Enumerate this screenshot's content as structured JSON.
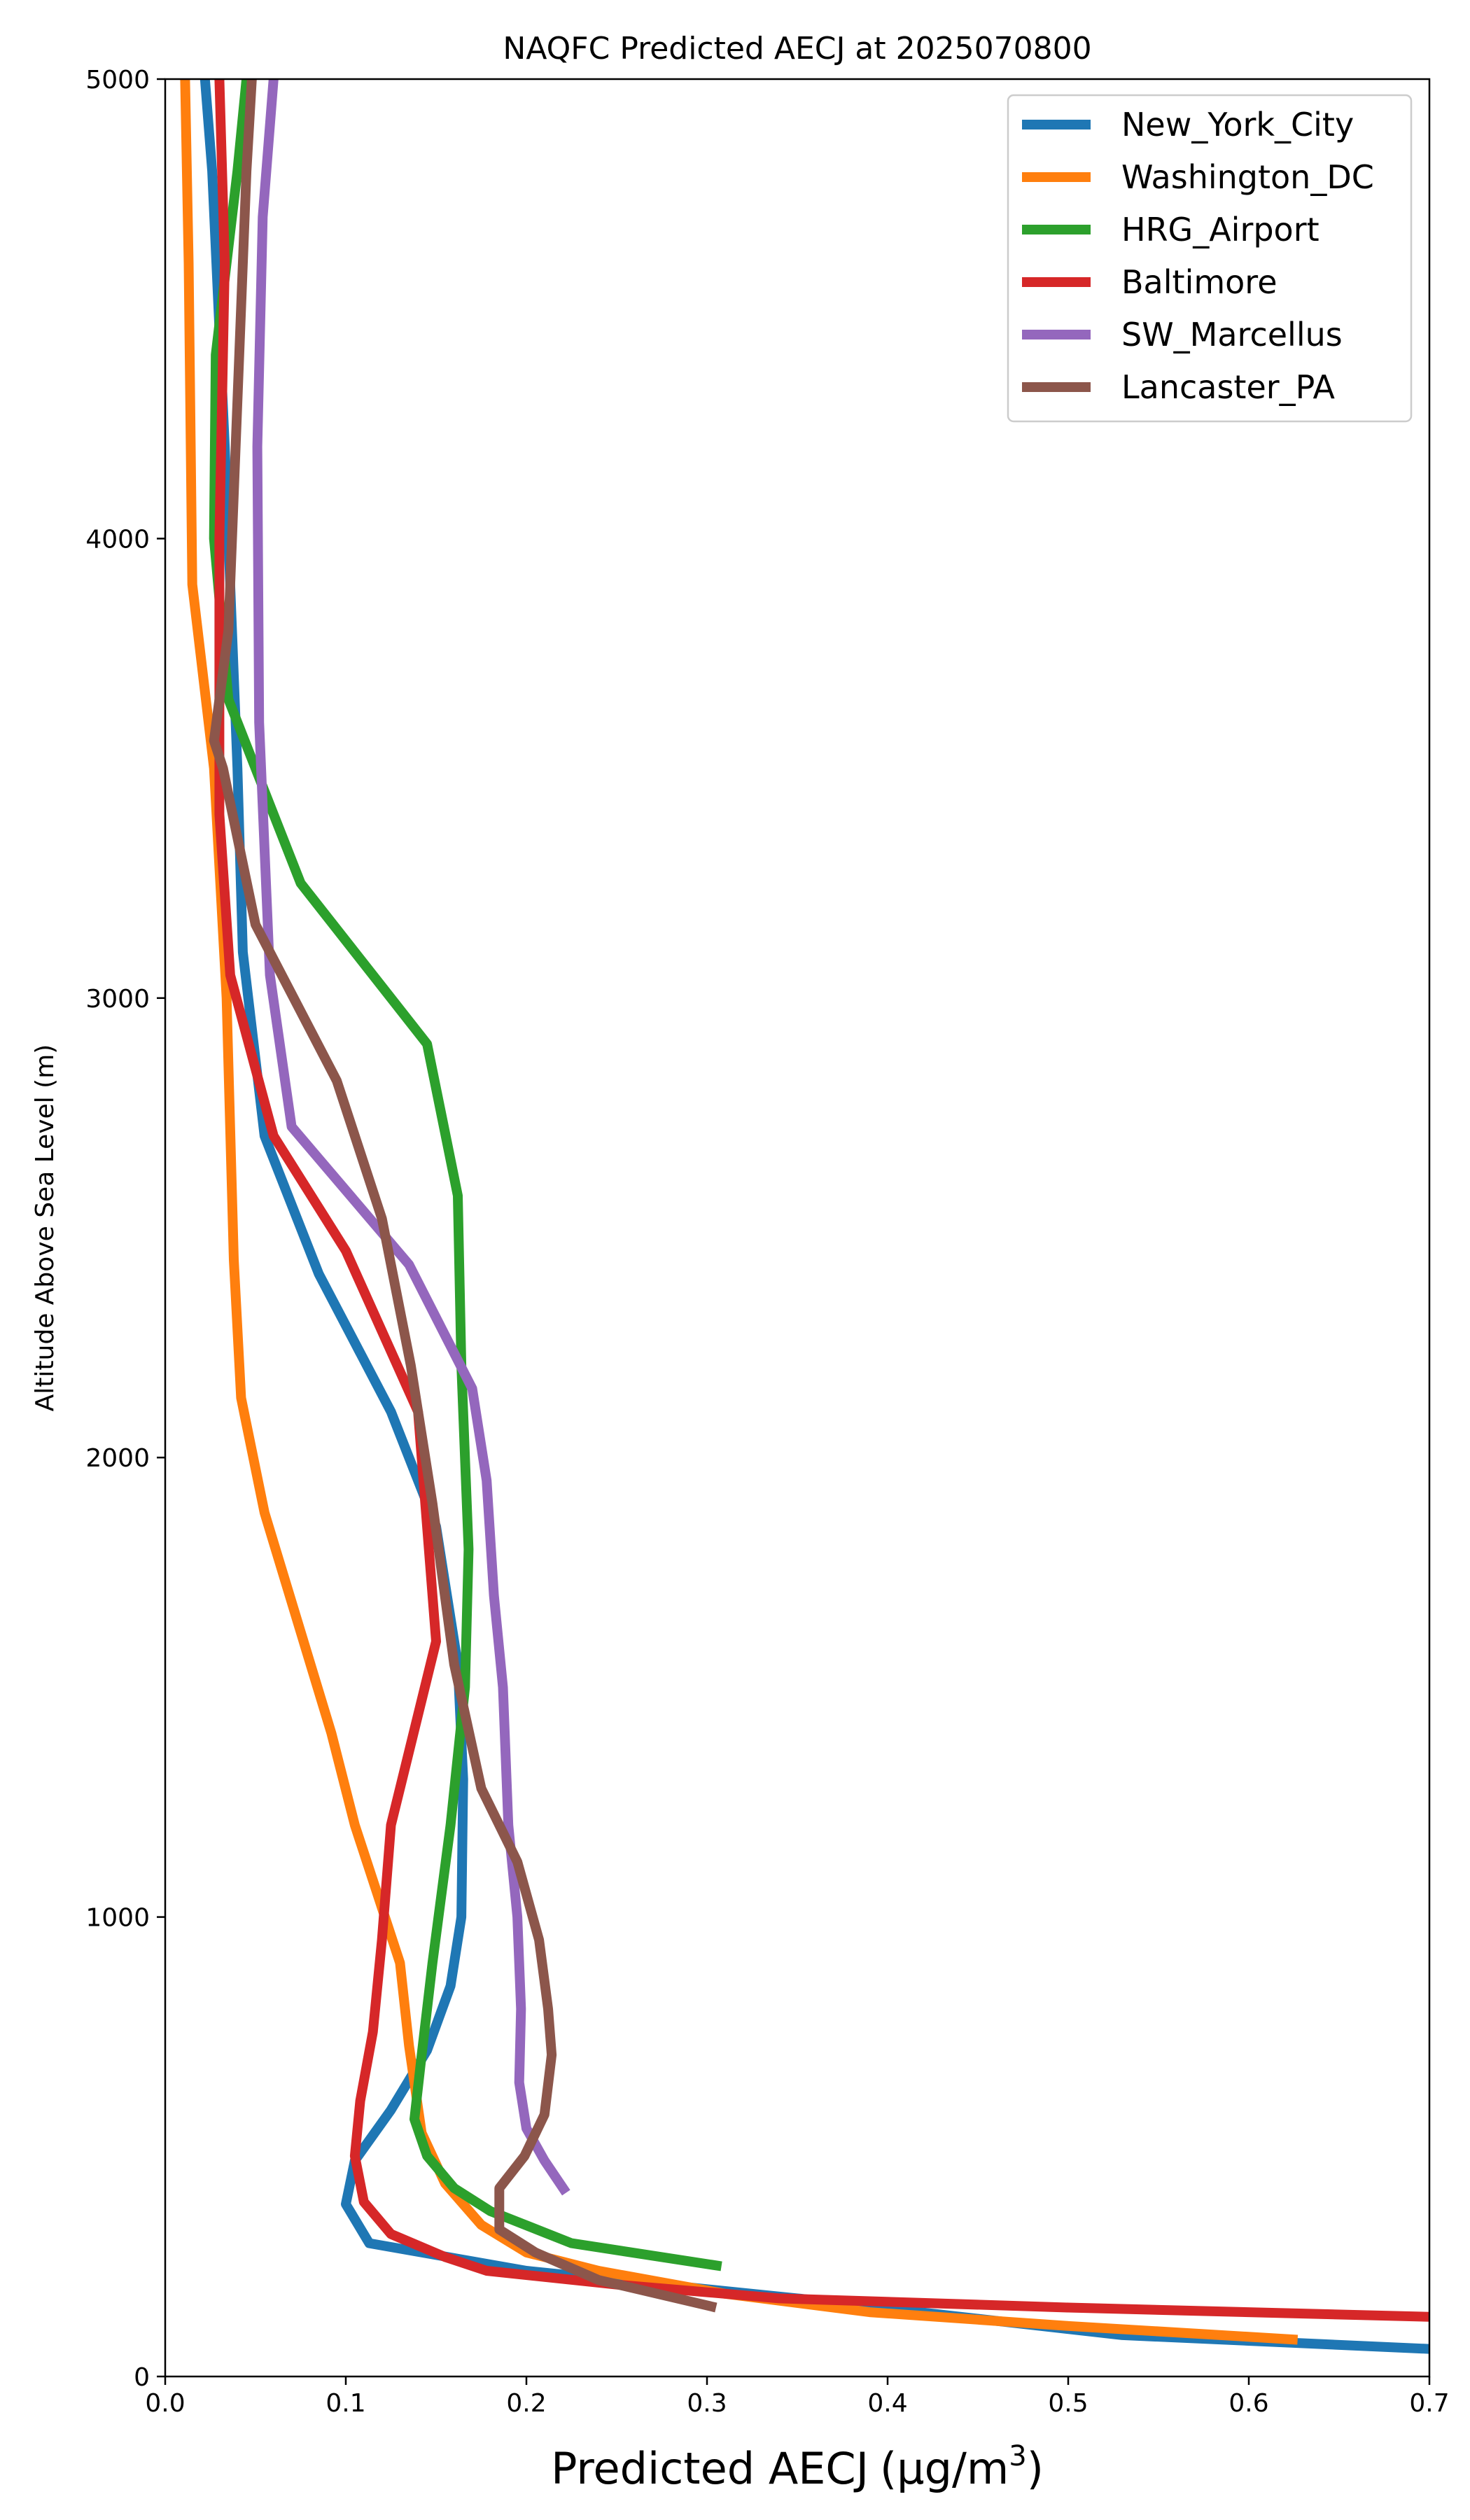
{
  "chart_data": {
    "type": "line",
    "title": "NAQFC Predicted AECJ at 2025070800",
    "xlabel": "Predicted AECJ",
    "xlabel_unit": "(μg/m",
    "xlabel_unit_sup": "3",
    "xlabel_unit_close": ")",
    "ylabel": "Altitude Above Sea Level (m)",
    "xlim": [
      0.0,
      0.7
    ],
    "ylim": [
      0,
      5000
    ],
    "xticks": [
      0.0,
      0.1,
      0.2,
      0.3,
      0.4,
      0.5,
      0.6,
      0.7
    ],
    "xtick_labels": [
      "0.0",
      "0.1",
      "0.2",
      "0.3",
      "0.4",
      "0.5",
      "0.6",
      "0.7"
    ],
    "yticks": [
      0,
      1000,
      2000,
      3000,
      4000,
      5000
    ],
    "ytick_labels": [
      "0",
      "1000",
      "2000",
      "3000",
      "4000",
      "5000"
    ],
    "grid": false,
    "legend_position": "top-right",
    "series": [
      {
        "name": "New_York_City",
        "color": "#1f77b4",
        "points": [
          [
            0.7,
            60
          ],
          [
            0.53,
            90
          ],
          [
            0.35,
            170
          ],
          [
            0.2,
            230
          ],
          [
            0.113,
            290
          ],
          [
            0.1,
            375
          ],
          [
            0.105,
            470
          ],
          [
            0.125,
            580
          ],
          [
            0.145,
            710
          ],
          [
            0.158,
            850
          ],
          [
            0.164,
            1000
          ],
          [
            0.165,
            1300
          ],
          [
            0.162,
            1550
          ],
          [
            0.15,
            1850
          ],
          [
            0.125,
            2100
          ],
          [
            0.085,
            2400
          ],
          [
            0.055,
            2700
          ],
          [
            0.043,
            3100
          ],
          [
            0.04,
            3500
          ],
          [
            0.033,
            4200
          ],
          [
            0.026,
            4800
          ],
          [
            0.022,
            5000
          ]
        ]
      },
      {
        "name": "Washington_DC",
        "color": "#ff7f0e",
        "points": [
          [
            0.627,
            80
          ],
          [
            0.5,
            110
          ],
          [
            0.39,
            140
          ],
          [
            0.31,
            180
          ],
          [
            0.24,
            230
          ],
          [
            0.2,
            270
          ],
          [
            0.175,
            330
          ],
          [
            0.155,
            420
          ],
          [
            0.142,
            530
          ],
          [
            0.135,
            720
          ],
          [
            0.13,
            900
          ],
          [
            0.105,
            1200
          ],
          [
            0.092,
            1400
          ],
          [
            0.055,
            1880
          ],
          [
            0.042,
            2130
          ],
          [
            0.038,
            2430
          ],
          [
            0.034,
            3000
          ],
          [
            0.027,
            3500
          ],
          [
            0.015,
            3900
          ],
          [
            0.013,
            4600
          ],
          [
            0.011,
            5000
          ]
        ]
      },
      {
        "name": "HRG_Airport",
        "color": "#2ca02c",
        "points": [
          [
            0.308,
            240
          ],
          [
            0.225,
            290
          ],
          [
            0.18,
            360
          ],
          [
            0.16,
            410
          ],
          [
            0.145,
            480
          ],
          [
            0.138,
            560
          ],
          [
            0.142,
            700
          ],
          [
            0.148,
            900
          ],
          [
            0.158,
            1200
          ],
          [
            0.166,
            1500
          ],
          [
            0.168,
            1800
          ],
          [
            0.164,
            2200
          ],
          [
            0.162,
            2570
          ],
          [
            0.145,
            2900
          ],
          [
            0.075,
            3250
          ],
          [
            0.035,
            3650
          ],
          [
            0.027,
            4000
          ],
          [
            0.028,
            4400
          ],
          [
            0.04,
            4800
          ],
          [
            0.045,
            5000
          ]
        ]
      },
      {
        "name": "Baltimore",
        "color": "#d62728",
        "points": [
          [
            0.7,
            130
          ],
          [
            0.5,
            150
          ],
          [
            0.34,
            170
          ],
          [
            0.25,
            200
          ],
          [
            0.178,
            230
          ],
          [
            0.155,
            260
          ],
          [
            0.125,
            310
          ],
          [
            0.11,
            380
          ],
          [
            0.105,
            480
          ],
          [
            0.108,
            600
          ],
          [
            0.115,
            750
          ],
          [
            0.12,
            950
          ],
          [
            0.125,
            1200
          ],
          [
            0.15,
            1600
          ],
          [
            0.14,
            2100
          ],
          [
            0.1,
            2450
          ],
          [
            0.06,
            2700
          ],
          [
            0.036,
            3050
          ],
          [
            0.03,
            3400
          ],
          [
            0.03,
            4000
          ],
          [
            0.033,
            4600
          ],
          [
            0.03,
            5000
          ]
        ]
      },
      {
        "name": "SW_Marcellus",
        "color": "#9467bd",
        "points": [
          [
            0.222,
            400
          ],
          [
            0.21,
            470
          ],
          [
            0.2,
            540
          ],
          [
            0.196,
            640
          ],
          [
            0.197,
            800
          ],
          [
            0.195,
            1000
          ],
          [
            0.19,
            1200
          ],
          [
            0.187,
            1500
          ],
          [
            0.182,
            1700
          ],
          [
            0.178,
            1950
          ],
          [
            0.17,
            2150
          ],
          [
            0.135,
            2420
          ],
          [
            0.07,
            2720
          ],
          [
            0.058,
            3050
          ],
          [
            0.052,
            3600
          ],
          [
            0.051,
            4200
          ],
          [
            0.054,
            4700
          ],
          [
            0.06,
            5000
          ]
        ]
      },
      {
        "name": "Lancaster_PA",
        "color": "#8c564b",
        "points": [
          [
            0.305,
            150
          ],
          [
            0.24,
            210
          ],
          [
            0.205,
            270
          ],
          [
            0.185,
            320
          ],
          [
            0.185,
            410
          ],
          [
            0.199,
            480
          ],
          [
            0.21,
            570
          ],
          [
            0.214,
            700
          ],
          [
            0.212,
            800
          ],
          [
            0.207,
            950
          ],
          [
            0.195,
            1120
          ],
          [
            0.175,
            1280
          ],
          [
            0.16,
            1550
          ],
          [
            0.148,
            1900
          ],
          [
            0.136,
            2200
          ],
          [
            0.12,
            2520
          ],
          [
            0.095,
            2820
          ],
          [
            0.05,
            3160
          ],
          [
            0.032,
            3500
          ],
          [
            0.027,
            3560
          ],
          [
            0.035,
            3800
          ],
          [
            0.04,
            4300
          ],
          [
            0.045,
            4800
          ],
          [
            0.048,
            5000
          ]
        ]
      }
    ]
  }
}
